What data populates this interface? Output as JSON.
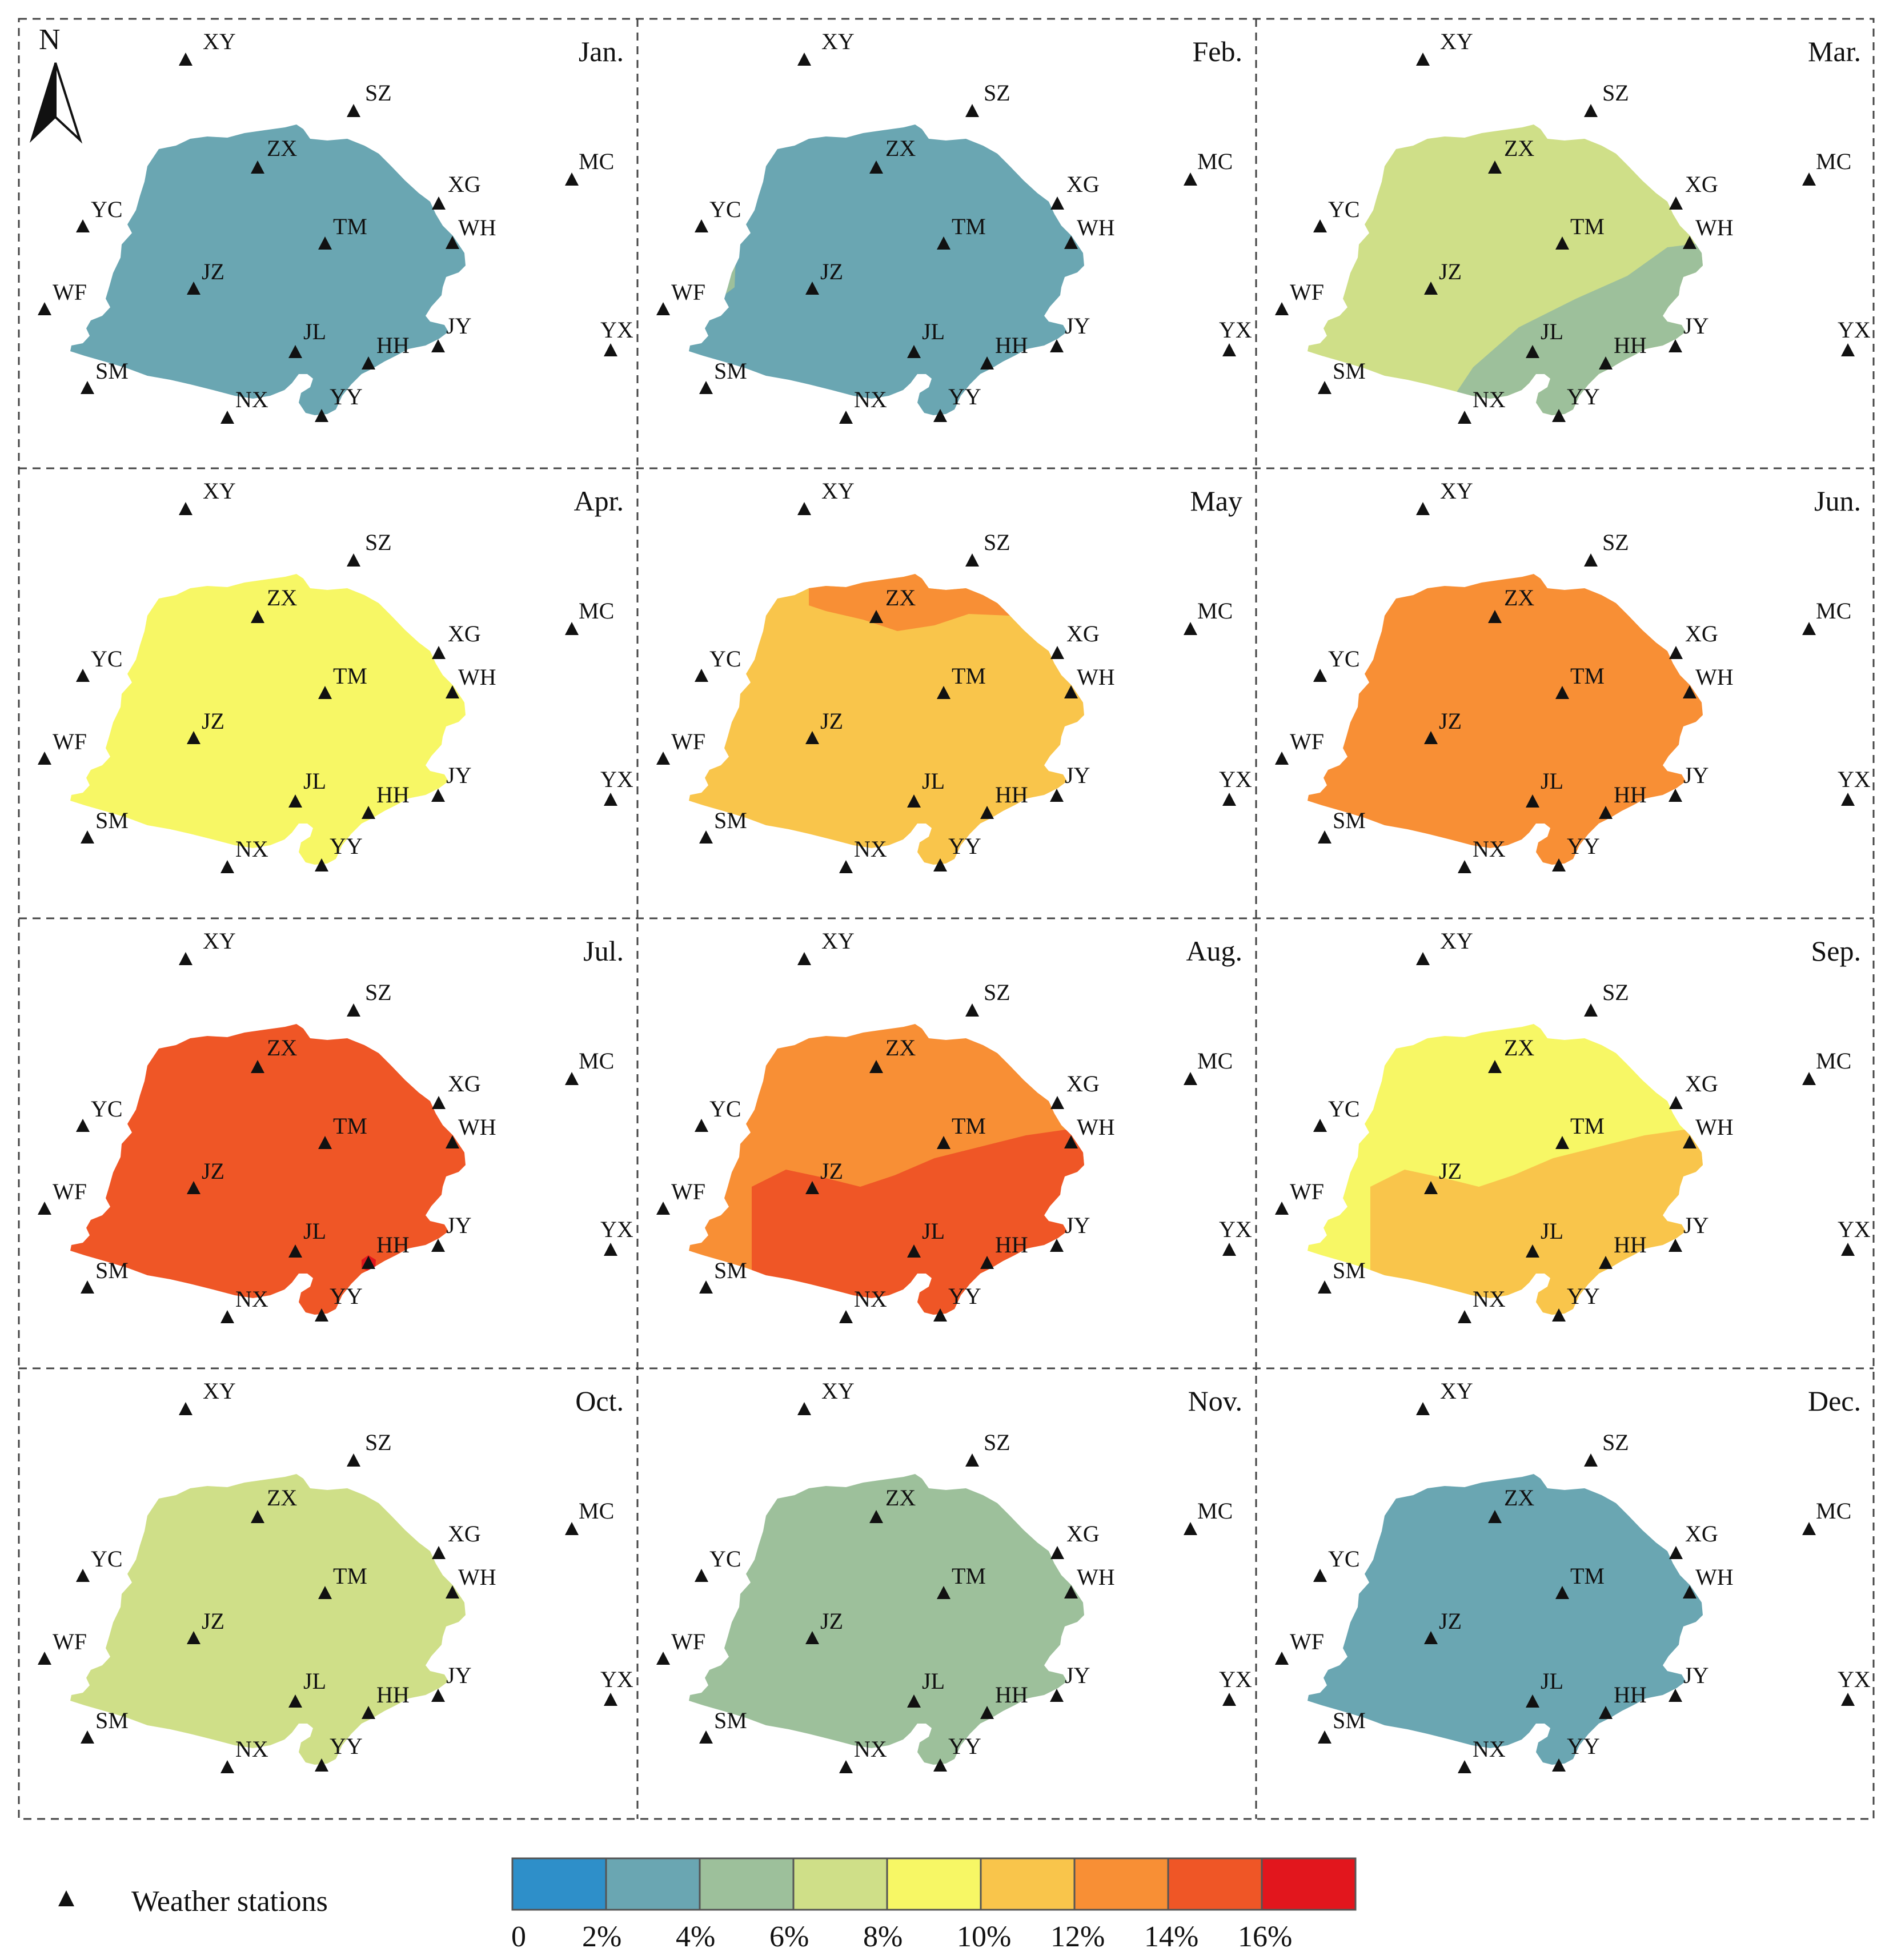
{
  "figure": {
    "north_label": "N",
    "legend_station_label": "Weather stations",
    "colorbar": {
      "colors": [
        "#2e8fc9",
        "#6aa6b2",
        "#9dc09b",
        "#cfdf88",
        "#f7f765",
        "#f9c54b",
        "#f88f35",
        "#ef5626",
        "#e2161d"
      ],
      "tick_labels": [
        "0",
        "2%",
        "4%",
        "6%",
        "8%",
        "10%",
        "12%",
        "14%",
        "16%"
      ]
    },
    "stations": [
      {
        "label": "XY"
      },
      {
        "label": "SZ"
      },
      {
        "label": "MC"
      },
      {
        "label": "ZX"
      },
      {
        "label": "XG"
      },
      {
        "label": "WH"
      },
      {
        "label": "YC"
      },
      {
        "label": "TM"
      },
      {
        "label": "JZ"
      },
      {
        "label": "WF"
      },
      {
        "label": "JY"
      },
      {
        "label": "YX"
      },
      {
        "label": "JL"
      },
      {
        "label": "HH"
      },
      {
        "label": "SM"
      },
      {
        "label": "NX"
      },
      {
        "label": "YY"
      }
    ],
    "panels": [
      {
        "month": "Jan.",
        "zones": [
          {
            "color_index": 1,
            "region": "full"
          }
        ]
      },
      {
        "month": "Feb.",
        "zones": [
          {
            "color_index": 1,
            "region": "full"
          },
          {
            "color_index": 2,
            "region": "west-edge"
          }
        ]
      },
      {
        "month": "Mar.",
        "zones": [
          {
            "color_index": 3,
            "region": "full"
          },
          {
            "color_index": 2,
            "region": "southeast"
          }
        ]
      },
      {
        "month": "Apr.",
        "zones": [
          {
            "color_index": 4,
            "region": "full"
          }
        ]
      },
      {
        "month": "May",
        "zones": [
          {
            "color_index": 5,
            "region": "full"
          },
          {
            "color_index": 6,
            "region": "north"
          }
        ]
      },
      {
        "month": "Jun.",
        "zones": [
          {
            "color_index": 6,
            "region": "full"
          }
        ]
      },
      {
        "month": "Jul.",
        "zones": [
          {
            "color_index": 7,
            "region": "full"
          },
          {
            "color_index": 8,
            "region": "hh-spot"
          }
        ]
      },
      {
        "month": "Aug.",
        "zones": [
          {
            "color_index": 6,
            "region": "full"
          },
          {
            "color_index": 7,
            "region": "south"
          }
        ]
      },
      {
        "month": "Sep.",
        "zones": [
          {
            "color_index": 4,
            "region": "full"
          },
          {
            "color_index": 5,
            "region": "south"
          }
        ]
      },
      {
        "month": "Oct.",
        "zones": [
          {
            "color_index": 3,
            "region": "full"
          }
        ]
      },
      {
        "month": "Nov.",
        "zones": [
          {
            "color_index": 2,
            "region": "full"
          }
        ]
      },
      {
        "month": "Dec.",
        "zones": [
          {
            "color_index": 1,
            "region": "full"
          }
        ]
      }
    ]
  }
}
